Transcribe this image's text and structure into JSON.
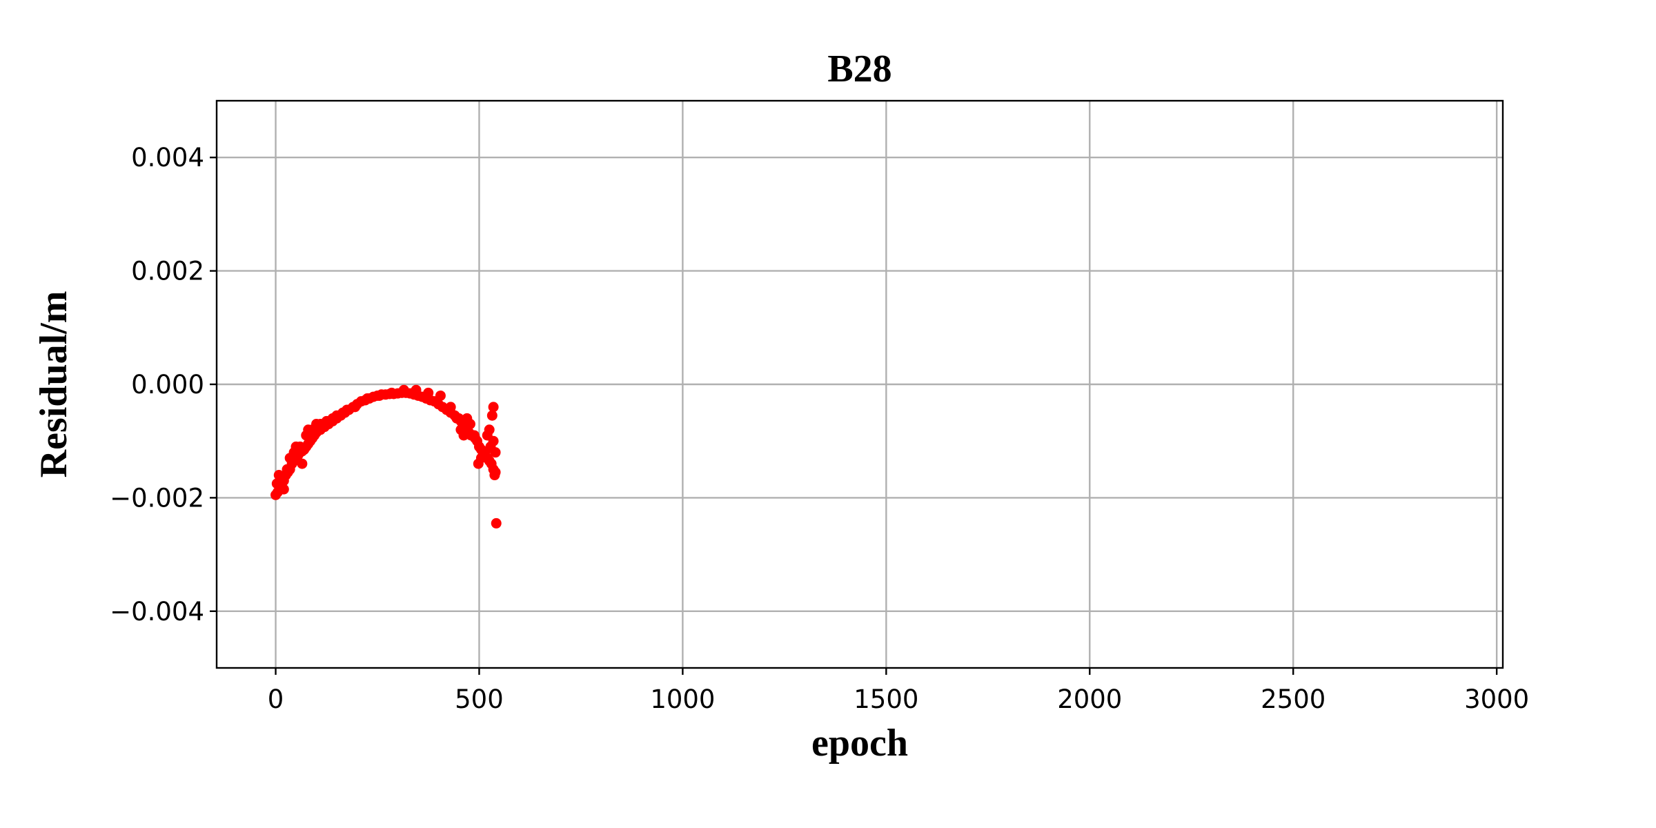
{
  "chart_data": {
    "type": "scatter",
    "title": "B28",
    "xlabel": "epoch",
    "ylabel": "Residual/m",
    "xlim": [
      -145,
      3015
    ],
    "ylim": [
      -0.005,
      0.005
    ],
    "xticks": [
      0,
      500,
      1000,
      1500,
      2000,
      2500,
      3000
    ],
    "xtick_labels": [
      "0",
      "500",
      "1000",
      "1500",
      "2000",
      "2500",
      "3000"
    ],
    "yticks": [
      0.004,
      0.002,
      0.0,
      -0.002,
      -0.004
    ],
    "ytick_labels": [
      "0.004",
      "0.002",
      "0.000",
      "−0.002",
      "−0.004"
    ],
    "grid": true,
    "marker_color": "#ff0000",
    "series": [
      {
        "x": [
          0,
          5,
          10,
          15,
          20,
          25,
          30,
          35,
          40,
          45,
          50,
          55,
          60,
          65,
          70,
          75,
          80,
          85,
          90,
          95,
          100,
          110,
          120,
          130,
          140,
          150,
          160,
          170,
          180,
          190,
          200,
          210,
          220,
          230,
          240,
          250,
          260,
          270,
          280,
          290,
          300,
          310,
          320,
          330,
          340,
          350,
          360,
          370,
          380,
          390,
          400,
          410,
          420,
          430,
          440,
          450,
          455,
          460,
          465,
          470,
          475,
          480,
          485,
          490,
          495,
          500,
          505,
          510,
          515,
          520,
          525,
          530,
          535,
          540,
          538,
          528,
          520,
          540,
          535,
          525,
          515,
          505,
          498,
          488,
          478,
          470,
          462,
          455,
          445,
          20,
          12,
          35,
          50,
          65,
          80,
          100,
          125,
          150,
          175,
          3,
          8,
          28,
          45,
          60,
          75,
          90,
          110,
          140,
          165,
          195,
          225,
          255,
          285,
          315,
          345,
          375,
          405,
          430,
          535,
          532,
          542
        ],
        "y": [
          -0.00195,
          -0.0019,
          -0.0018,
          -0.00175,
          -0.0017,
          -0.0016,
          -0.00155,
          -0.0015,
          -0.0014,
          -0.00135,
          -0.0013,
          -0.00125,
          -0.0012,
          -0.00118,
          -0.00115,
          -0.0011,
          -0.00105,
          -0.001,
          -0.00095,
          -0.0009,
          -0.00085,
          -0.0008,
          -0.00075,
          -0.0007,
          -0.00065,
          -0.0006,
          -0.00055,
          -0.0005,
          -0.00045,
          -0.0004,
          -0.00035,
          -0.0003,
          -0.00028,
          -0.00025,
          -0.00022,
          -0.0002,
          -0.00018,
          -0.00018,
          -0.00017,
          -0.00017,
          -0.00016,
          -0.00015,
          -0.00015,
          -0.00016,
          -0.00018,
          -0.0002,
          -0.00022,
          -0.00025,
          -0.00028,
          -0.0003,
          -0.00035,
          -0.0004,
          -0.00045,
          -0.0005,
          -0.00055,
          -0.0006,
          -0.00065,
          -0.0007,
          -0.00075,
          -0.0008,
          -0.00085,
          -0.0009,
          -0.0009,
          -0.00095,
          -0.001,
          -0.0011,
          -0.00115,
          -0.0012,
          -0.00125,
          -0.0013,
          -0.00135,
          -0.0014,
          -0.0015,
          -0.00155,
          -0.0016,
          -0.0011,
          -0.0009,
          -0.0012,
          -0.001,
          -0.0008,
          -0.0012,
          -0.0013,
          -0.0014,
          -0.0009,
          -0.0007,
          -0.0006,
          -0.0009,
          -0.0008,
          -0.0006,
          -0.00185,
          -0.00165,
          -0.0013,
          -0.0011,
          -0.0014,
          -0.0008,
          -0.0007,
          -0.00065,
          -0.00055,
          -0.00045,
          -0.00175,
          -0.0016,
          -0.0015,
          -0.0012,
          -0.0011,
          -0.0009,
          -0.0008,
          -0.0007,
          -0.0006,
          -0.0005,
          -0.0004,
          -0.00025,
          -0.0002,
          -0.00015,
          -0.0001,
          -0.0001,
          -0.00015,
          -0.0002,
          -0.0004,
          -0.0004,
          -0.00055,
          -0.00245
        ]
      }
    ]
  }
}
